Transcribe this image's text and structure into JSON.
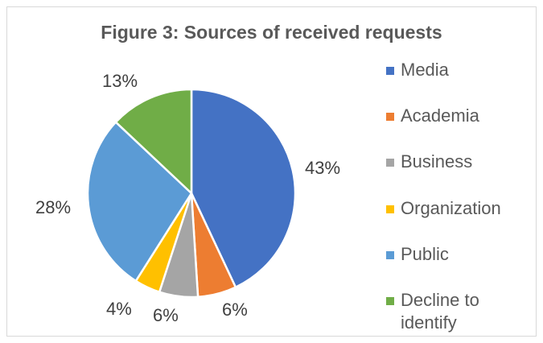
{
  "chart_data": {
    "type": "pie",
    "title": "Figure 3: Sources of received requests",
    "categories": [
      "Media",
      "Academia",
      "Business",
      "Organization",
      "Public",
      "Decline to identify"
    ],
    "values": [
      43,
      6,
      6,
      4,
      28,
      13
    ],
    "value_labels": [
      "43%",
      "6%",
      "6%",
      "4%",
      "28%",
      "13%"
    ],
    "colors": [
      "#4472C4",
      "#ED7D31",
      "#A5A5A5",
      "#FFC000",
      "#5B9BD5",
      "#70AD47"
    ],
    "legend_position": "right",
    "start_angle": "12 o'clock, clockwise"
  },
  "title": "Figure 3: Sources of received requests",
  "labels": {
    "media": "43%",
    "academia": "6%",
    "business": "6%",
    "organization": "4%",
    "public": "28%",
    "decline": "13%"
  },
  "legend": {
    "items": [
      {
        "label": "Media",
        "color": "#4472C4"
      },
      {
        "label": "Academia",
        "color": "#ED7D31"
      },
      {
        "label": "Business",
        "color": "#A5A5A5"
      },
      {
        "label": "Organization",
        "color": "#FFC000"
      },
      {
        "label": "Public",
        "color": "#5B9BD5"
      },
      {
        "label": "Decline to identify",
        "line1": "Decline to",
        "line2": "identify",
        "color": "#70AD47"
      }
    ]
  }
}
